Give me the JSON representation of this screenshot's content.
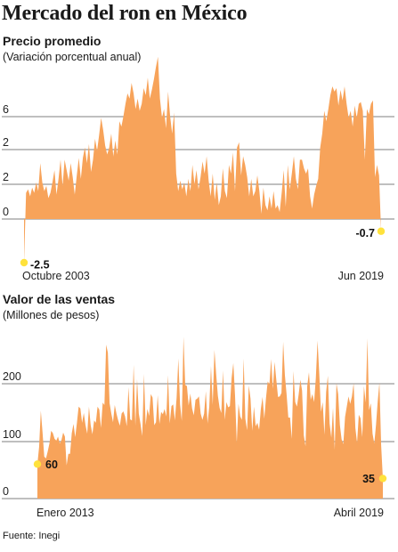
{
  "title": "Mercado del ron en México",
  "source": "Fuente: Inegi",
  "colors": {
    "fill": "#f7a35a",
    "grid": "#555555",
    "marker": "#ffe23c"
  },
  "chart_data": [
    {
      "type": "area",
      "title": "Precio promedio",
      "subtitle": "(Variación porcentual anual)",
      "y_ticks": [
        "6",
        "2",
        "2",
        "0"
      ],
      "x_labels": [
        "Octubre 2003",
        "Jun 2019"
      ],
      "annotations": [
        {
          "label": "-2.5",
          "value": -2.5,
          "position": "start"
        },
        {
          "label": "-0.7",
          "value": -0.7,
          "position": "end"
        }
      ],
      "values": [
        -2.5,
        1.5,
        1.7,
        1.3,
        1.8,
        1.5,
        2.1,
        1.6,
        3.2,
        2.1,
        1.6,
        1.9,
        1.2,
        1.5,
        2.1,
        2.8,
        1.4,
        2.3,
        3.4,
        1.9,
        3.4,
        2.8,
        2.2,
        3.2,
        2.4,
        1.4,
        2.5,
        3.5,
        2.3,
        3.5,
        4.1,
        3.2,
        4.3,
        2.7,
        3.4,
        4.6,
        3.9,
        4.8,
        5.8,
        5.1,
        4.2,
        3.7,
        4.1,
        4.9,
        3.6,
        4.5,
        3.7,
        5.6,
        5.3,
        5.9,
        6.6,
        7.2,
        6.9,
        7.8,
        7.2,
        6.3,
        6.9,
        6.2,
        6.6,
        7.5,
        7.1,
        8.1,
        6.9,
        7.4,
        8.0,
        8.7,
        9.3,
        6.9,
        5.8,
        6.3,
        5.2,
        7.3,
        5.9,
        4.9,
        6.1,
        2.6,
        1.6,
        2.2,
        1.7,
        2.1,
        1.3,
        2.3,
        1.6,
        3.1,
        2.0,
        2.8,
        1.7,
        2.4,
        3.3,
        2.6,
        3.6,
        2.2,
        1.3,
        2.6,
        1.1,
        2.1,
        0.8,
        1.3,
        2.9,
        1.6,
        1.2,
        3.1,
        2.6,
        3.8,
        1.6,
        4.1,
        4.4,
        2.5,
        3.6,
        3.1,
        2.4,
        1.3,
        2.3,
        1.3,
        1.6,
        2.5,
        1.6,
        0.3,
        1.8,
        0.8,
        0.5,
        1.3,
        0.6,
        1.6,
        0.6,
        0.8,
        0.4,
        1.5,
        2.8,
        0.7,
        3.1,
        1.7,
        2.6,
        3.6,
        2.3,
        1.7,
        3.4,
        3.4,
        2.9,
        2.6,
        2.9,
        1.3,
        0.6,
        1.4,
        1.9,
        2.3,
        4.1,
        4.9,
        6.2,
        5.6,
        6.3,
        7.1,
        7.6,
        7.3,
        7.5,
        6.5,
        7.4,
        6.8,
        7.6,
        6.6,
        5.8,
        6.2,
        5.3,
        6.5,
        5.8,
        6.6,
        6.7,
        6.2,
        3.4,
        6.3,
        6.0,
        6.6,
        6.8,
        2.4,
        3.1,
        2.5,
        -0.7
      ]
    },
    {
      "type": "area",
      "title": "Valor de las ventas",
      "subtitle": "(Millones de pesos)",
      "y_ticks": [
        "200",
        "100",
        "0"
      ],
      "ylim": [
        0,
        270
      ],
      "x_labels": [
        "Enero 2013",
        "Abril 2019"
      ],
      "annotations": [
        {
          "label": "60",
          "value": 60,
          "position": "start"
        },
        {
          "label": "35",
          "value": 35,
          "position": "end"
        }
      ],
      "values": [
        60,
        90,
        153,
        115,
        73,
        70,
        82,
        96,
        118,
        114,
        104,
        101,
        108,
        96,
        102,
        115,
        108,
        58,
        78,
        78,
        114,
        130,
        107,
        132,
        160,
        157,
        132,
        149,
        128,
        113,
        160,
        128,
        112,
        136,
        132,
        160,
        155,
        123,
        167,
        163,
        268,
        254,
        166,
        148,
        133,
        163,
        148,
        136,
        127,
        148,
        152,
        143,
        126,
        194,
        138,
        136,
        233,
        127,
        208,
        148,
        130,
        109,
        217,
        128,
        156,
        144,
        182,
        176,
        128,
        133,
        180,
        130,
        151,
        147,
        156,
        143,
        215,
        131,
        161,
        164,
        136,
        176,
        244,
        164,
        135,
        282,
        198,
        196,
        162,
        183,
        157,
        145,
        172,
        174,
        178,
        148,
        137,
        148,
        187,
        131,
        160,
        231,
        163,
        259,
        217,
        179,
        158,
        149,
        223,
        137,
        168,
        159,
        161,
        210,
        236,
        179,
        97,
        165,
        143,
        137,
        244,
        139,
        119,
        197,
        174,
        118,
        160,
        126,
        132,
        120,
        156,
        177,
        139,
        175,
        204,
        199,
        243,
        191,
        238,
        207,
        177,
        178,
        184,
        273,
        215,
        181,
        141,
        141,
        104,
        222,
        168,
        160,
        181,
        207,
        188,
        110,
        91,
        196,
        220,
        172,
        182,
        168,
        210,
        275,
        217,
        151,
        168,
        111,
        186,
        214,
        131,
        106,
        158,
        85,
        201,
        182,
        128,
        103,
        95,
        142,
        160,
        178,
        165,
        178,
        201,
        123,
        97,
        146,
        140,
        107,
        196,
        167,
        279,
        154,
        166,
        113,
        96,
        128,
        169,
        202,
        93,
        35
      ]
    }
  ]
}
